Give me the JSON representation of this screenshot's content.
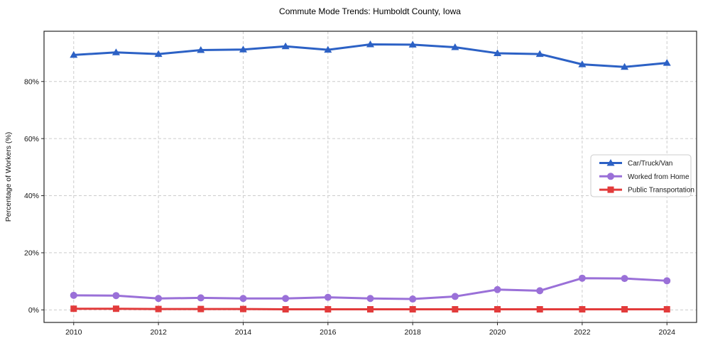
{
  "title": "Commute Mode Trends: Humboldt County, Iowa",
  "chart_data": {
    "type": "line",
    "title": "Commute Mode Trends: Humboldt County, Iowa",
    "xlabel": "",
    "ylabel": "Percentage of Workers (%)",
    "x": [
      2010,
      2011,
      2012,
      2013,
      2014,
      2015,
      2016,
      2017,
      2018,
      2019,
      2020,
      2021,
      2022,
      2023,
      2024
    ],
    "series": [
      {
        "name": "Car/Truck/Van",
        "color": "#2c61c5",
        "marker": "triangle-up",
        "values": [
          89.3,
          90.2,
          89.6,
          91.0,
          91.2,
          92.3,
          91.1,
          93.0,
          92.9,
          92.0,
          89.9,
          89.6,
          86.0,
          85.1,
          86.5
        ]
      },
      {
        "name": "Worked from Home",
        "color": "#9a70d8",
        "marker": "circle",
        "values": [
          5.1,
          5.0,
          4.0,
          4.2,
          4.0,
          4.0,
          4.4,
          4.0,
          3.8,
          4.7,
          7.1,
          6.7,
          11.1,
          11.0,
          10.2
        ]
      },
      {
        "name": "Public Transportation",
        "color": "#e23b3b",
        "marker": "square",
        "values": [
          0.4,
          0.4,
          0.3,
          0.3,
          0.3,
          0.2,
          0.2,
          0.2,
          0.2,
          0.2,
          0.2,
          0.2,
          0.2,
          0.2,
          0.2
        ]
      }
    ],
    "xticks": [
      2010,
      2012,
      2014,
      2016,
      2018,
      2020,
      2022,
      2024
    ],
    "xtick_labels": [
      "2010",
      "2012",
      "2014",
      "2016",
      "2018",
      "2020",
      "2022",
      "2024"
    ],
    "yticks": [
      0,
      20,
      40,
      60,
      80
    ],
    "ytick_labels": [
      "0%",
      "20%",
      "40%",
      "60%",
      "80%"
    ],
    "xlim": [
      2009.3,
      2024.7
    ],
    "ylim": [
      -4.4,
      97.6
    ],
    "grid": "on",
    "legend_position": "center-right"
  },
  "colors": {
    "background": "#ffffff",
    "grid": "#cccccc",
    "axis_frame": "#262626",
    "text": "#111111",
    "legend_border": "#cccccc",
    "legend_background": "#ffffff",
    "series_blue": "#2c61c5",
    "series_purple": "#9a70d8",
    "series_red": "#e23b3b"
  }
}
